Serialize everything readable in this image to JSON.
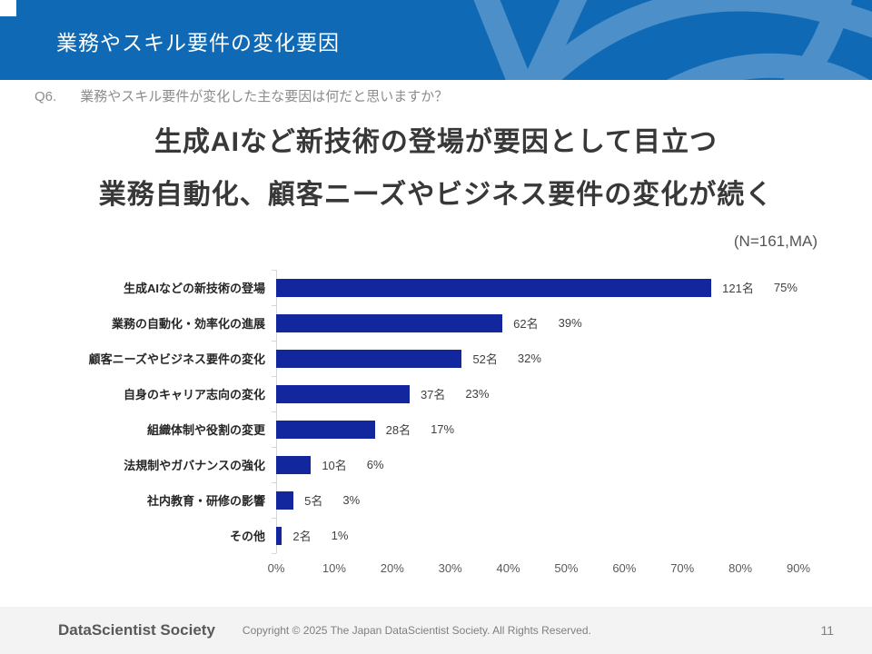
{
  "header": {
    "title": "業務やスキル要件の変化要因"
  },
  "question": {
    "prefix": "Q6.",
    "text": "業務やスキル要件が変化した主な要因は何だと思いますか？"
  },
  "headline": {
    "line1": "生成AIなど新技術の登場が要因として目立つ",
    "line2": "業務自動化、顧客ニーズやビジネス要件の変化が続く"
  },
  "sample_note": "(N=161,MA)",
  "chart_data": {
    "type": "bar",
    "orientation": "horizontal",
    "categories": [
      "生成AIなどの新技術の登場",
      "業務の自動化・効率化の進展",
      "顧客ニーズやビジネス要件の変化",
      "自身のキャリア志向の変化",
      "組織体制や役割の変更",
      "法規制やガバナンスの強化",
      "社内教育・研修の影響",
      "その他"
    ],
    "series": [
      {
        "name": "回答数",
        "unit": "名",
        "values": [
          121,
          62,
          52,
          37,
          28,
          10,
          5,
          2
        ]
      },
      {
        "name": "割合",
        "unit": "%",
        "values": [
          75,
          39,
          32,
          23,
          17,
          6,
          3,
          1
        ]
      }
    ],
    "x_ticks": [
      "0%",
      "10%",
      "20%",
      "30%",
      "40%",
      "50%",
      "60%",
      "70%",
      "80%",
      "90%"
    ],
    "xlim": [
      0,
      90
    ],
    "grid": false,
    "legend": "none",
    "bar_color": "#12279e"
  },
  "footer": {
    "logo": "DataScientist Society",
    "copyright": "Copyright © 2025  The Japan DataScientist Society. All Rights Reserved.",
    "page_number": "11"
  },
  "colors": {
    "header_blue": "#0f69b4",
    "swoosh_blue": "#4c8fc9",
    "bar_navy": "#12279e",
    "headline_text": "#383838",
    "footer_bg": "#f3f3f3"
  }
}
